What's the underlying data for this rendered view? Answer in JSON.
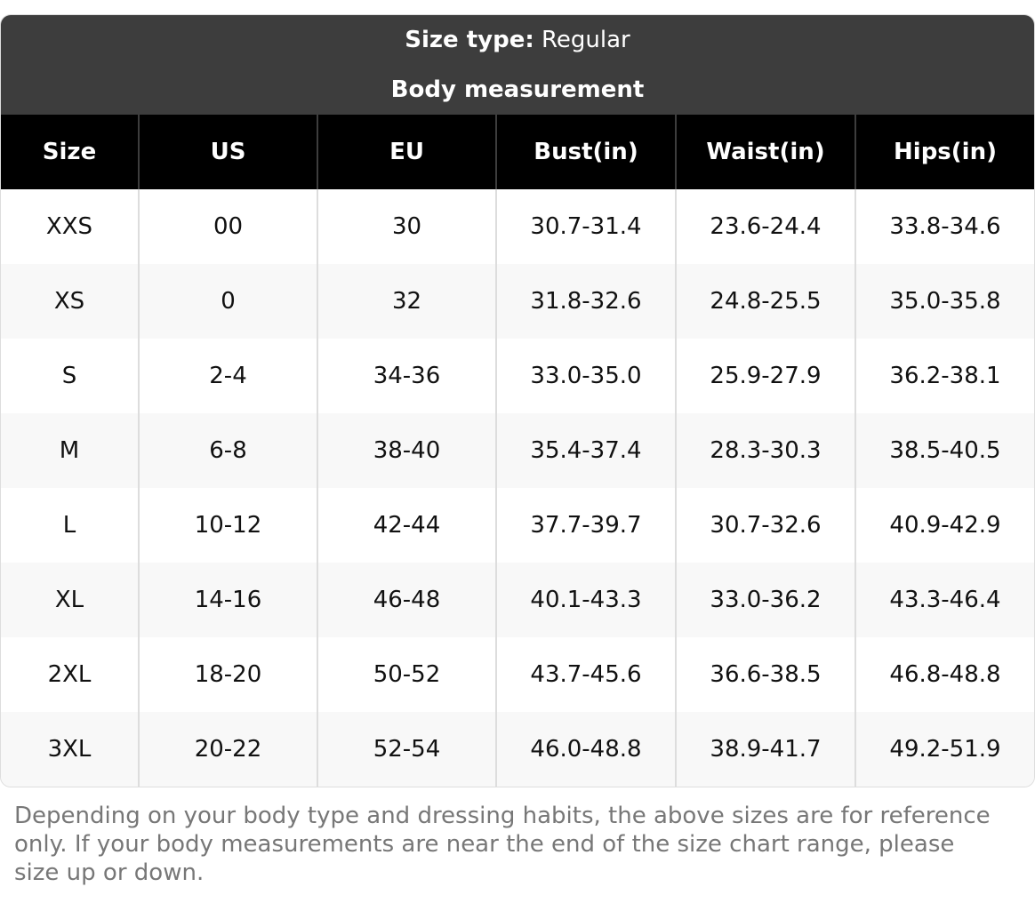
{
  "header": {
    "size_type_label": "Size type:",
    "size_type_value": "Regular",
    "subtitle": "Body measurement"
  },
  "table": {
    "columns": [
      "Size",
      "US",
      "EU",
      "Bust(in)",
      "Waist(in)",
      "Hips(in)"
    ],
    "rows": [
      [
        "XXS",
        "00",
        "30",
        "30.7-31.4",
        "23.6-24.4",
        "33.8-34.6"
      ],
      [
        "XS",
        "0",
        "32",
        "31.8-32.6",
        "24.8-25.5",
        "35.0-35.8"
      ],
      [
        "S",
        "2-4",
        "34-36",
        "33.0-35.0",
        "25.9-27.9",
        "36.2-38.1"
      ],
      [
        "M",
        "6-8",
        "38-40",
        "35.4-37.4",
        "28.3-30.3",
        "38.5-40.5"
      ],
      [
        "L",
        "10-12",
        "42-44",
        "37.7-39.7",
        "30.7-32.6",
        "40.9-42.9"
      ],
      [
        "XL",
        "14-16",
        "46-48",
        "40.1-43.3",
        "33.0-36.2",
        "43.3-46.4"
      ],
      [
        "2XL",
        "18-20",
        "50-52",
        "43.7-45.6",
        "36.6-38.5",
        "46.8-48.8"
      ],
      [
        "3XL",
        "20-22",
        "52-54",
        "46.0-48.8",
        "38.9-41.7",
        "49.2-51.9"
      ]
    ]
  },
  "note": "Depending on your body type and dressing habits, the above sizes are for reference only. If your body measurements are near the end of the size chart range, please size up or down."
}
